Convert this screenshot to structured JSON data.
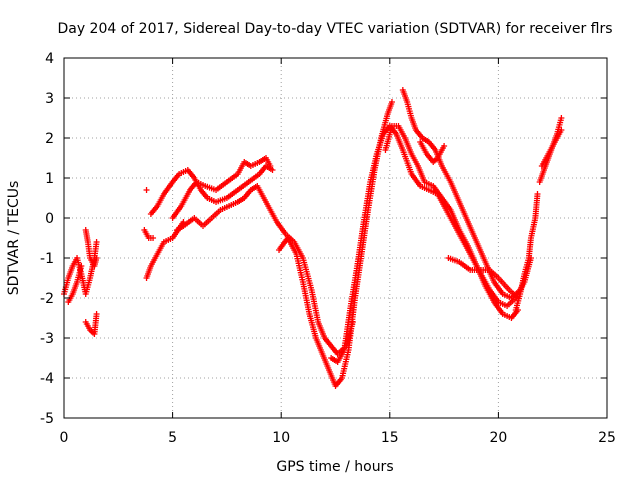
{
  "chart_data": {
    "type": "scatter",
    "title": "Day 204 of 2017, Sidereal Day-to-day VTEC variation (SDTVAR) for receiver flrs",
    "xlabel": "GPS time / hours",
    "ylabel": "SDTVAR / TECUs",
    "xlim": [
      0,
      25
    ],
    "ylim": [
      -5,
      4
    ],
    "xticks": [
      0,
      5,
      10,
      15,
      20,
      25
    ],
    "yticks": [
      -5,
      -4,
      -3,
      -2,
      -1,
      0,
      1,
      2,
      3,
      4
    ],
    "grid": true,
    "marker": "+",
    "color": "#ff0000",
    "series": [
      {
        "tracks": [
          [
            [
              0.0,
              -1.9
            ],
            [
              0.2,
              -1.5
            ],
            [
              0.4,
              -1.2
            ],
            [
              0.6,
              -1.0
            ],
            [
              0.8,
              -1.4
            ],
            [
              1.0,
              -1.9
            ],
            [
              1.2,
              -1.5
            ],
            [
              1.4,
              -1.0
            ],
            [
              1.5,
              -0.6
            ]
          ],
          [
            [
              0.2,
              -2.1
            ],
            [
              0.4,
              -1.9
            ],
            [
              0.6,
              -1.6
            ],
            [
              0.8,
              -1.2
            ]
          ],
          [
            [
              1.0,
              -2.6
            ],
            [
              1.2,
              -2.8
            ],
            [
              1.4,
              -2.9
            ],
            [
              1.5,
              -2.4
            ]
          ],
          [
            [
              1.0,
              -0.3
            ],
            [
              1.1,
              -0.6
            ],
            [
              1.2,
              -1.0
            ],
            [
              1.4,
              -1.2
            ],
            [
              1.5,
              -1.0
            ]
          ],
          [
            [
              3.8,
              0.7
            ]
          ],
          [
            [
              3.7,
              -0.3
            ],
            [
              3.9,
              -0.5
            ],
            [
              4.1,
              -0.5
            ]
          ],
          [
            [
              3.8,
              -1.5
            ],
            [
              4.0,
              -1.2
            ],
            [
              4.2,
              -1.0
            ],
            [
              4.4,
              -0.8
            ],
            [
              4.6,
              -0.6
            ],
            [
              5.0,
              -0.5
            ],
            [
              5.5,
              -0.1
            ]
          ],
          [
            [
              4.0,
              0.1
            ],
            [
              4.3,
              0.3
            ],
            [
              4.6,
              0.6
            ],
            [
              5.0,
              0.9
            ],
            [
              5.3,
              1.1
            ],
            [
              5.7,
              1.2
            ],
            [
              6.0,
              1.0
            ],
            [
              6.3,
              0.7
            ],
            [
              6.6,
              0.5
            ],
            [
              7.0,
              0.4
            ],
            [
              7.5,
              0.5
            ],
            [
              8.0,
              0.7
            ],
            [
              8.5,
              0.9
            ],
            [
              9.0,
              1.1
            ],
            [
              9.3,
              1.3
            ],
            [
              9.6,
              1.2
            ]
          ],
          [
            [
              5.0,
              0.0
            ],
            [
              5.4,
              0.3
            ],
            [
              5.8,
              0.7
            ],
            [
              6.1,
              0.9
            ],
            [
              6.5,
              0.8
            ],
            [
              7.0,
              0.7
            ],
            [
              7.5,
              0.9
            ],
            [
              8.0,
              1.1
            ],
            [
              8.3,
              1.4
            ],
            [
              8.6,
              1.3
            ],
            [
              9.0,
              1.4
            ],
            [
              9.3,
              1.5
            ],
            [
              9.5,
              1.3
            ]
          ],
          [
            [
              5.2,
              -0.3
            ],
            [
              5.5,
              -0.2
            ],
            [
              6.0,
              0.0
            ],
            [
              6.4,
              -0.2
            ],
            [
              6.8,
              0.0
            ],
            [
              7.2,
              0.2
            ],
            [
              7.6,
              0.3
            ],
            [
              8.0,
              0.4
            ],
            [
              8.3,
              0.5
            ],
            [
              8.6,
              0.7
            ],
            [
              8.9,
              0.8
            ],
            [
              9.2,
              0.5
            ],
            [
              9.5,
              0.2
            ],
            [
              9.8,
              -0.1
            ],
            [
              10.2,
              -0.4
            ],
            [
              10.6,
              -0.6
            ],
            [
              11.0,
              -1.0
            ],
            [
              11.4,
              -1.8
            ],
            [
              11.7,
              -2.6
            ],
            [
              12.0,
              -3.0
            ],
            [
              12.3,
              -3.2
            ],
            [
              12.6,
              -3.4
            ],
            [
              13.0,
              -3.2
            ],
            [
              13.3,
              -2.6
            ]
          ],
          [
            [
              9.9,
              -0.8
            ],
            [
              10.3,
              -0.5
            ],
            [
              10.7,
              -0.9
            ],
            [
              11.0,
              -1.6
            ],
            [
              11.3,
              -2.4
            ],
            [
              11.6,
              -3.0
            ],
            [
              11.9,
              -3.4
            ],
            [
              12.2,
              -3.8
            ],
            [
              12.5,
              -4.2
            ],
            [
              12.8,
              -4.0
            ],
            [
              13.1,
              -3.3
            ],
            [
              13.4,
              -2.0
            ],
            [
              13.7,
              -0.9
            ],
            [
              14.0,
              0.2
            ],
            [
              14.3,
              1.2
            ],
            [
              14.6,
              2.0
            ],
            [
              14.9,
              2.6
            ],
            [
              15.1,
              2.9
            ]
          ],
          [
            [
              12.3,
              -3.5
            ],
            [
              12.6,
              -3.6
            ],
            [
              12.9,
              -3.3
            ],
            [
              13.2,
              -2.2
            ],
            [
              13.5,
              -1.2
            ],
            [
              13.8,
              -0.1
            ],
            [
              14.1,
              0.9
            ],
            [
              14.4,
              1.6
            ],
            [
              14.7,
              2.1
            ],
            [
              15.0,
              2.3
            ],
            [
              15.3,
              2.1
            ],
            [
              15.6,
              1.7
            ],
            [
              16.0,
              1.1
            ],
            [
              16.4,
              0.8
            ],
            [
              16.8,
              0.7
            ],
            [
              17.2,
              0.6
            ],
            [
              17.6,
              0.2
            ],
            [
              18.0,
              -0.2
            ],
            [
              18.4,
              -0.6
            ],
            [
              18.8,
              -1.0
            ],
            [
              19.2,
              -1.4
            ],
            [
              19.6,
              -1.8
            ],
            [
              20.0,
              -2.1
            ],
            [
              20.4,
              -2.2
            ],
            [
              20.8,
              -2.0
            ],
            [
              21.2,
              -1.6
            ],
            [
              21.5,
              -1.0
            ]
          ],
          [
            [
              14.8,
              1.7
            ],
            [
              15.1,
              2.3
            ],
            [
              15.4,
              2.3
            ],
            [
              15.7,
              2.0
            ],
            [
              16.0,
              1.6
            ],
            [
              16.3,
              1.3
            ],
            [
              16.6,
              0.9
            ],
            [
              17.0,
              0.8
            ],
            [
              17.4,
              0.5
            ],
            [
              17.8,
              0.2
            ],
            [
              18.2,
              -0.3
            ],
            [
              18.6,
              -0.7
            ],
            [
              19.0,
              -1.2
            ],
            [
              19.4,
              -1.7
            ],
            [
              19.8,
              -2.1
            ],
            [
              20.2,
              -2.4
            ],
            [
              20.6,
              -2.5
            ],
            [
              20.9,
              -2.3
            ]
          ],
          [
            [
              15.6,
              3.2
            ],
            [
              15.8,
              2.9
            ],
            [
              16.0,
              2.5
            ],
            [
              16.2,
              2.2
            ],
            [
              16.5,
              2.0
            ],
            [
              16.8,
              1.9
            ],
            [
              17.1,
              1.7
            ],
            [
              17.4,
              1.3
            ],
            [
              17.8,
              0.9
            ],
            [
              18.2,
              0.4
            ],
            [
              18.6,
              -0.1
            ],
            [
              19.0,
              -0.6
            ],
            [
              19.4,
              -1.1
            ],
            [
              19.8,
              -1.6
            ],
            [
              20.2,
              -1.9
            ],
            [
              20.6,
              -2.0
            ],
            [
              21.0,
              -1.8
            ]
          ],
          [
            [
              16.4,
              1.9
            ],
            [
              16.7,
              1.6
            ],
            [
              17.0,
              1.4
            ],
            [
              17.2,
              1.5
            ],
            [
              17.5,
              1.8
            ]
          ],
          [
            [
              17.7,
              -1.0
            ],
            [
              18.2,
              -1.1
            ],
            [
              18.7,
              -1.3
            ],
            [
              19.1,
              -1.3
            ],
            [
              19.6,
              -1.3
            ],
            [
              20.0,
              -1.5
            ],
            [
              20.5,
              -1.8
            ],
            [
              20.9,
              -2.0
            ]
          ],
          [
            [
              20.8,
              -2.3
            ],
            [
              21.0,
              -1.9
            ],
            [
              21.2,
              -1.4
            ],
            [
              21.4,
              -1.0
            ],
            [
              21.5,
              -0.5
            ],
            [
              21.7,
              0.0
            ],
            [
              21.8,
              0.6
            ]
          ],
          [
            [
              21.9,
              0.9
            ],
            [
              22.1,
              1.2
            ],
            [
              22.3,
              1.5
            ],
            [
              22.5,
              1.8
            ],
            [
              22.7,
              2.1
            ],
            [
              22.9,
              2.5
            ]
          ],
          [
            [
              22.0,
              1.3
            ],
            [
              22.3,
              1.6
            ],
            [
              22.6,
              1.9
            ],
            [
              22.9,
              2.2
            ]
          ]
        ]
      }
    ]
  }
}
